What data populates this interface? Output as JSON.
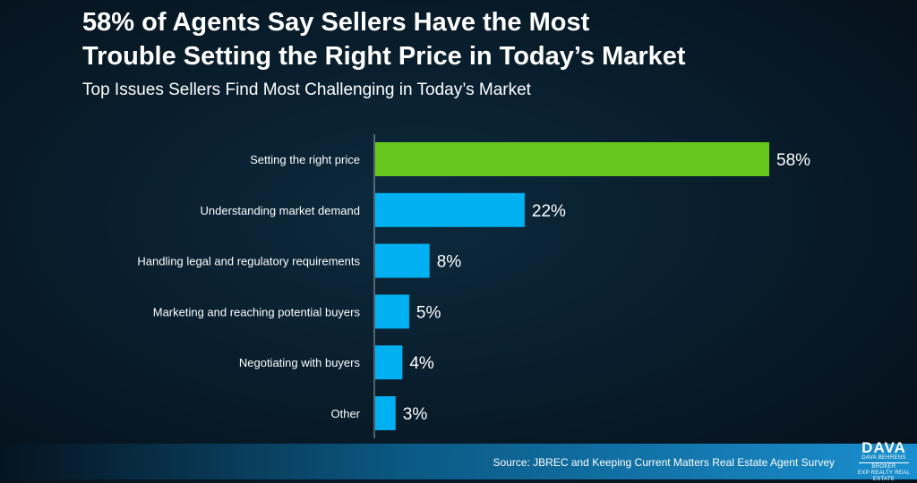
{
  "header": {
    "title_line1": "58% of Agents Say Sellers Have the Most",
    "title_line2": "Trouble Setting the Right Price in Today’s Market",
    "subtitle": "Top Issues Sellers Find Most Challenging in Today’s Market"
  },
  "chart_data": {
    "type": "bar",
    "orientation": "horizontal",
    "title": "58% of Agents Say Sellers Have the Most Trouble Setting the Right Price in Today’s Market",
    "subtitle": "Top Issues Sellers Find Most Challenging in Today’s Market",
    "xlabel": "",
    "ylabel": "",
    "xlim": [
      0,
      60
    ],
    "grid": false,
    "legend": "none",
    "categories": [
      "Setting the right price",
      "Understanding market demand",
      "Handling legal and regulatory requirements",
      "Marketing and reaching potential buyers",
      "Negotiating with buyers",
      "Other"
    ],
    "values": [
      58,
      22,
      8,
      5,
      4,
      3
    ],
    "value_labels": [
      "58%",
      "22%",
      "8%",
      "5%",
      "4%",
      "3%"
    ],
    "colors": [
      "#66c61c",
      "#00b0f0",
      "#00b0f0",
      "#00b0f0",
      "#00b0f0",
      "#00b0f0"
    ]
  },
  "footer": {
    "source": "Source: JBREC and Keeping Current Matters Real Estate Agent Survey"
  },
  "logo": {
    "main": "DAVA",
    "line1": "DAVA BEHRENS",
    "line2": "BROKER",
    "line3": "EXP REALTY REAL ESTATE"
  }
}
